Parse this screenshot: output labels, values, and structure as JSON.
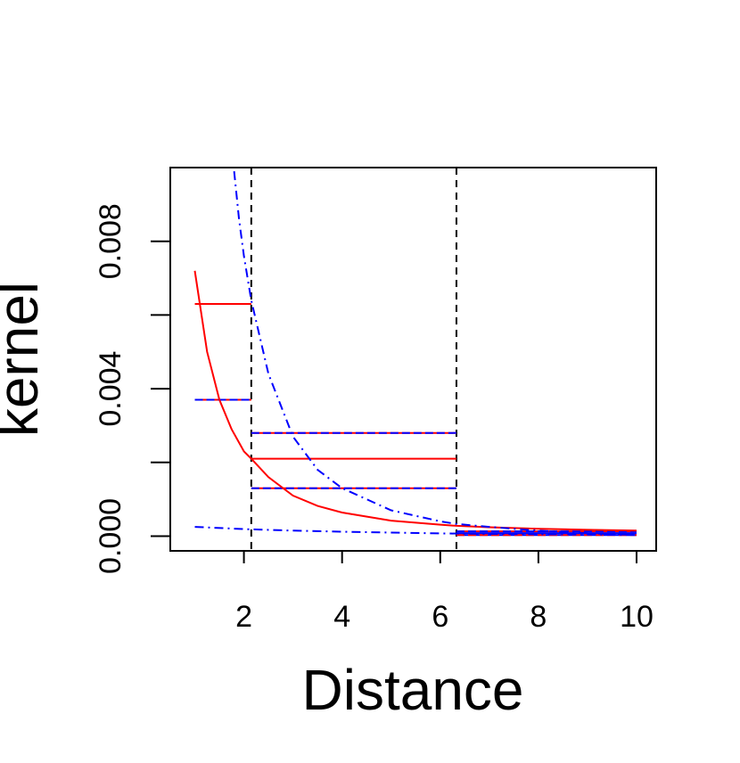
{
  "chart_data": {
    "type": "line",
    "title": "",
    "xlabel": "Distance",
    "ylabel": "kernel",
    "xlim": [
      0.5,
      10.4
    ],
    "ylim": [
      -0.0004,
      0.01
    ],
    "x_ticks": [
      2,
      4,
      6,
      8,
      10
    ],
    "x_tick_labels": [
      "2",
      "4",
      "6",
      "8",
      "10"
    ],
    "y_ticks": [
      0.0,
      0.002,
      0.004,
      0.006,
      0.008
    ],
    "y_tick_labels": [
      "0.000",
      "",
      "0.004",
      "",
      "0.008"
    ],
    "vlines": [
      2.15,
      6.33
    ],
    "curves": [
      {
        "color": "#ff0000",
        "dash": "solid",
        "x": [
          1.0,
          1.25,
          1.5,
          1.75,
          2.0,
          2.15,
          2.5,
          3.0,
          3.5,
          4.0,
          5.0,
          6.0,
          6.33,
          7.0,
          8.0,
          9.0,
          10.0
        ],
        "y": [
          0.0072,
          0.005,
          0.0037,
          0.0029,
          0.0023,
          0.0021,
          0.0016,
          0.0011,
          0.00082,
          0.00064,
          0.00042,
          0.00031,
          0.00028,
          0.00024,
          0.0002,
          0.00017,
          0.00015
        ]
      },
      {
        "color": "#0000ff",
        "dash": "dashdot",
        "x": [
          1.8,
          1.9,
          2.0,
          2.15,
          2.5,
          3.0,
          3.5,
          4.0,
          5.0,
          6.0,
          6.33,
          7.0,
          8.0,
          9.0,
          10.0
        ],
        "y": [
          0.0099,
          0.0086,
          0.0076,
          0.0064,
          0.0044,
          0.0027,
          0.0018,
          0.0013,
          0.0007,
          0.0004,
          0.00033,
          0.00025,
          0.00015,
          8e-05,
          3e-05
        ]
      },
      {
        "color": "#0000ff",
        "dash": "dashdot",
        "x": [
          1.0,
          2.0,
          3.0,
          4.0,
          5.0,
          6.0,
          7.0,
          8.0,
          9.0,
          10.0
        ],
        "y": [
          0.00025,
          0.00019,
          0.00015,
          0.00012,
          9.5e-05,
          7.5e-05,
          6e-05,
          5e-05,
          4e-05,
          3e-05
        ]
      }
    ],
    "segments": [
      {
        "x0": 1.0,
        "x1": 2.15,
        "y": 0.0063,
        "color": "#ff0000",
        "style": "solid"
      },
      {
        "x0": 1.0,
        "x1": 2.15,
        "y": 0.0037,
        "color": "#ff0000",
        "style": "solid"
      },
      {
        "x0": 1.0,
        "x1": 2.15,
        "y": 0.0037,
        "color": "#0000ff",
        "style": "dashed"
      },
      {
        "x0": 2.15,
        "x1": 6.33,
        "y": 0.0028,
        "color": "#ff0000",
        "style": "solid"
      },
      {
        "x0": 2.15,
        "x1": 6.33,
        "y": 0.0028,
        "color": "#0000ff",
        "style": "dashed"
      },
      {
        "x0": 2.15,
        "x1": 6.33,
        "y": 0.0021,
        "color": "#ff0000",
        "style": "solid"
      },
      {
        "x0": 2.15,
        "x1": 6.33,
        "y": 0.0013,
        "color": "#ff0000",
        "style": "solid"
      },
      {
        "x0": 2.15,
        "x1": 6.33,
        "y": 0.0013,
        "color": "#0000ff",
        "style": "dashed"
      },
      {
        "x0": 6.33,
        "x1": 10.0,
        "y": 0.00013,
        "color": "#ff0000",
        "style": "solid"
      },
      {
        "x0": 6.33,
        "x1": 10.0,
        "y": 0.00013,
        "color": "#0000ff",
        "style": "dashed"
      },
      {
        "x0": 6.33,
        "x1": 10.0,
        "y": 3e-05,
        "color": "#0000ff",
        "style": "solid"
      },
      {
        "x0": 6.33,
        "x1": 10.0,
        "y": 3e-05,
        "color": "#ff0000",
        "style": "dashed"
      },
      {
        "x0": 6.33,
        "x1": 10.0,
        "y": 8e-05,
        "color": "#0000ff",
        "style": "solid"
      }
    ]
  }
}
